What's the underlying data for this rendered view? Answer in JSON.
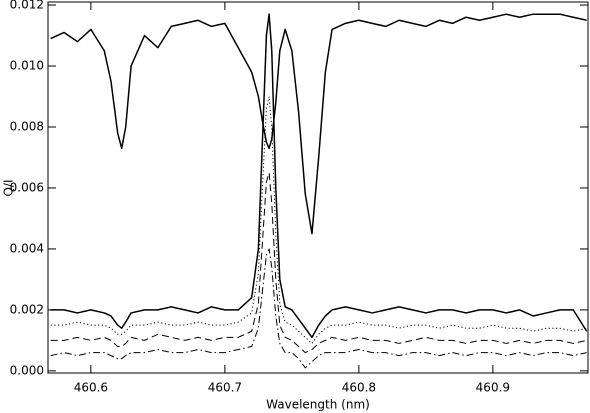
{
  "chart_data": {
    "type": "line",
    "x_label": "Wavelength (nm)",
    "y_label": "Q/I",
    "xlim": [
      460.568,
      460.971
    ],
    "ylim": [
      -7e-05,
      0.0121
    ],
    "xticks": [
      460.6,
      460.7,
      460.8,
      460.9
    ],
    "yticks": [
      {
        "value": 0,
        "label": "0.000"
      },
      {
        "value": 0.002,
        "label": "0.002"
      },
      {
        "value": 0.004,
        "label": "0.004"
      },
      {
        "value": 0.006,
        "label": "0.006"
      },
      {
        "value": 0.008,
        "label": "0.008"
      },
      {
        "value": 0.01,
        "label": "0.010"
      },
      {
        "value": 0.012,
        "label": "0.012"
      }
    ],
    "x": [
      460.57,
      460.58,
      460.59,
      460.6,
      460.61,
      460.615,
      460.62,
      460.623,
      460.626,
      460.63,
      460.64,
      460.65,
      460.66,
      460.67,
      460.68,
      460.69,
      460.7,
      460.71,
      460.72,
      460.725,
      460.728,
      460.731,
      460.733,
      460.735,
      460.738,
      460.741,
      460.745,
      460.75,
      460.755,
      460.76,
      460.765,
      460.77,
      460.775,
      460.78,
      460.79,
      460.8,
      460.81,
      460.82,
      460.83,
      460.84,
      460.85,
      460.86,
      460.87,
      460.88,
      460.89,
      460.9,
      460.91,
      460.92,
      460.93,
      460.94,
      460.95,
      460.96,
      460.97
    ],
    "series": [
      {
        "color": "#000000",
        "dash": "solid",
        "width": 1.5,
        "values": [
          0.0109,
          0.0111,
          0.0108,
          0.0112,
          0.0105,
          0.0095,
          0.0078,
          0.0073,
          0.008,
          0.01,
          0.011,
          0.0106,
          0.0113,
          0.0114,
          0.0115,
          0.0113,
          0.0114,
          0.0106,
          0.0098,
          0.009,
          0.0082,
          0.0075,
          0.0073,
          0.0076,
          0.0088,
          0.0105,
          0.0112,
          0.0105,
          0.0085,
          0.0058,
          0.0045,
          0.007,
          0.0098,
          0.0112,
          0.0114,
          0.0115,
          0.0114,
          0.0113,
          0.0115,
          0.0114,
          0.0113,
          0.0115,
          0.0114,
          0.0116,
          0.0115,
          0.0116,
          0.0117,
          0.0116,
          0.0117,
          0.0117,
          0.0117,
          0.0116,
          0.0115
        ]
      },
      {
        "color": "#000000",
        "dash": "solid",
        "width": 1.5,
        "values": [
          0.002,
          0.002,
          0.0019,
          0.002,
          0.0019,
          0.0018,
          0.0015,
          0.0014,
          0.0016,
          0.0019,
          0.002,
          0.002,
          0.0021,
          0.002,
          0.0019,
          0.0021,
          0.002,
          0.002,
          0.0024,
          0.004,
          0.0075,
          0.011,
          0.0117,
          0.0105,
          0.006,
          0.003,
          0.0021,
          0.002,
          0.0017,
          0.0014,
          0.0011,
          0.0015,
          0.0018,
          0.002,
          0.0021,
          0.002,
          0.0019,
          0.002,
          0.0021,
          0.002,
          0.0019,
          0.002,
          0.002,
          0.0019,
          0.002,
          0.002,
          0.0019,
          0.002,
          0.0018,
          0.0019,
          0.002,
          0.002,
          0.0013
        ]
      },
      {
        "color": "#000000",
        "dash": "dotted",
        "width": 1,
        "values": [
          0.0015,
          0.0015,
          0.0016,
          0.0015,
          0.0015,
          0.0014,
          0.0012,
          0.0012,
          0.0013,
          0.0015,
          0.0015,
          0.0016,
          0.0015,
          0.0015,
          0.0016,
          0.0015,
          0.0015,
          0.0016,
          0.0019,
          0.0032,
          0.006,
          0.0086,
          0.009,
          0.008,
          0.0045,
          0.0022,
          0.0016,
          0.0015,
          0.0013,
          0.0011,
          0.0009,
          0.0012,
          0.0014,
          0.0015,
          0.0015,
          0.0016,
          0.0015,
          0.0015,
          0.0014,
          0.0015,
          0.0015,
          0.0014,
          0.0015,
          0.0014,
          0.0014,
          0.0015,
          0.0014,
          0.0014,
          0.0013,
          0.0014,
          0.0014,
          0.0013,
          0.0014
        ]
      },
      {
        "color": "#000000",
        "dash": "dashed",
        "width": 1,
        "values": [
          0.001,
          0.001,
          0.0011,
          0.001,
          0.0011,
          0.001,
          0.0008,
          0.0008,
          0.0009,
          0.0011,
          0.001,
          0.0012,
          0.0011,
          0.001,
          0.0011,
          0.001,
          0.0011,
          0.0011,
          0.0013,
          0.0022,
          0.0042,
          0.0062,
          0.0065,
          0.0055,
          0.003,
          0.0015,
          0.0011,
          0.001,
          0.0008,
          0.0006,
          0.0007,
          0.0009,
          0.001,
          0.0011,
          0.001,
          0.0011,
          0.001,
          0.001,
          0.0009,
          0.001,
          0.0011,
          0.001,
          0.001,
          0.0009,
          0.001,
          0.001,
          0.0009,
          0.001,
          0.0009,
          0.001,
          0.001,
          0.0009,
          0.001
        ]
      },
      {
        "color": "#000000",
        "dash": "dashdot",
        "width": 1,
        "values": [
          0.0005,
          0.0006,
          0.0005,
          0.0006,
          0.0006,
          0.0005,
          0.0004,
          0.0004,
          0.0005,
          0.0006,
          0.0006,
          0.0007,
          0.0006,
          0.0006,
          0.0007,
          0.0006,
          0.0006,
          0.0007,
          0.0008,
          0.0014,
          0.0026,
          0.0038,
          0.004,
          0.0034,
          0.0018,
          0.0009,
          0.0006,
          0.0006,
          0.0004,
          0.0001,
          0.0003,
          0.0005,
          0.0006,
          0.0006,
          0.0006,
          0.0007,
          0.0006,
          0.0006,
          0.0005,
          0.0006,
          0.0006,
          0.0005,
          0.0006,
          0.0005,
          0.0006,
          0.0006,
          0.0005,
          0.0006,
          0.0005,
          0.0006,
          0.0006,
          0.0005,
          0.0006
        ]
      }
    ]
  }
}
